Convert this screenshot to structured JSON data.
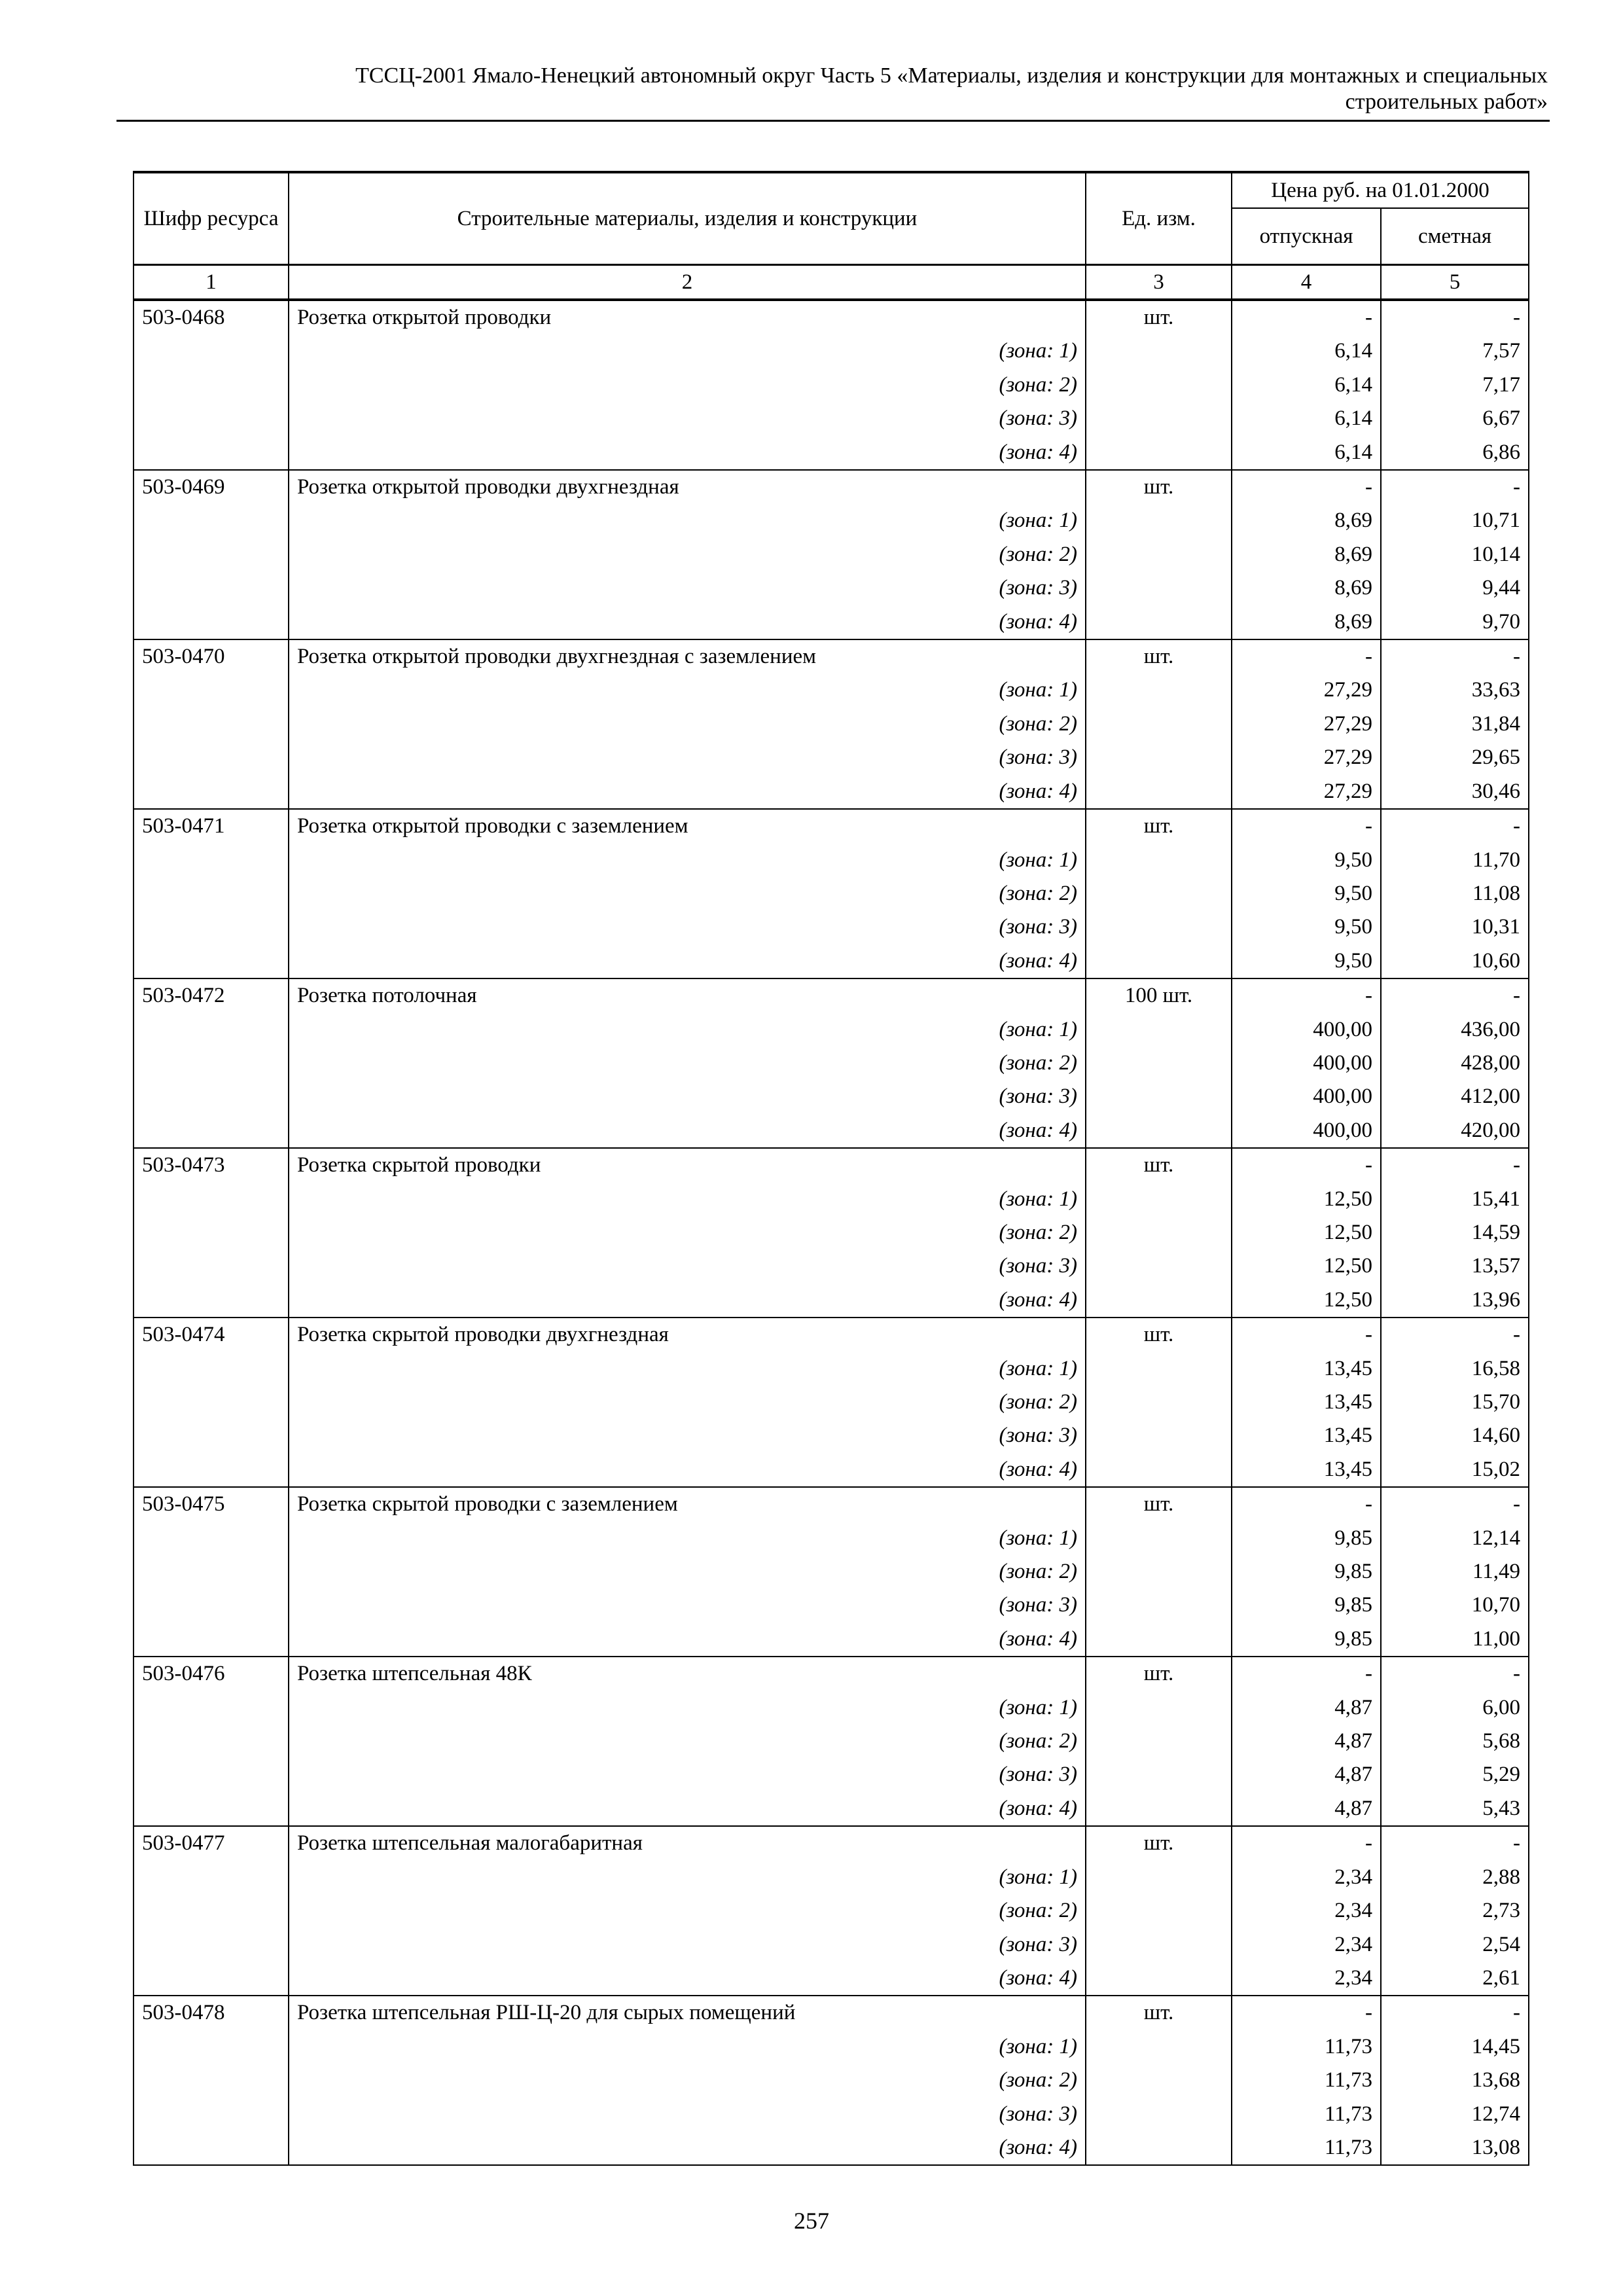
{
  "header": {
    "line1": "ТССЦ-2001 Ямало-Ненецкий автономный округ Часть 5 «Материалы, изделия и конструкции для монтажных и специальных",
    "line2": "строительных работ»"
  },
  "table": {
    "columns": {
      "code": "Шифр ресурса",
      "name": "Строительные материалы, изделия и конструкции",
      "unit": "Ед. изм.",
      "price_group": "Цена руб. на 01.01.2000",
      "release": "отпускная",
      "estimate": "сметная"
    },
    "column_numbers": [
      "1",
      "2",
      "3",
      "4",
      "5"
    ],
    "zone_labels": [
      "(зона: 1)",
      "(зона: 2)",
      "(зона: 3)",
      "(зона: 4)"
    ],
    "items": [
      {
        "code": "503-0468",
        "name": "Розетка открытой проводки",
        "unit": "шт.",
        "release": [
          "-",
          "6,14",
          "6,14",
          "6,14",
          "6,14"
        ],
        "estimate": [
          "-",
          "7,57",
          "7,17",
          "6,67",
          "6,86"
        ]
      },
      {
        "code": "503-0469",
        "name": "Розетка открытой проводки двухгнездная",
        "unit": "шт.",
        "release": [
          "-",
          "8,69",
          "8,69",
          "8,69",
          "8,69"
        ],
        "estimate": [
          "-",
          "10,71",
          "10,14",
          "9,44",
          "9,70"
        ]
      },
      {
        "code": "503-0470",
        "name": "Розетка открытой проводки двухгнездная с заземлением",
        "unit": "шт.",
        "release": [
          "-",
          "27,29",
          "27,29",
          "27,29",
          "27,29"
        ],
        "estimate": [
          "-",
          "33,63",
          "31,84",
          "29,65",
          "30,46"
        ]
      },
      {
        "code": "503-0471",
        "name": "Розетка открытой проводки с заземлением",
        "unit": "шт.",
        "release": [
          "-",
          "9,50",
          "9,50",
          "9,50",
          "9,50"
        ],
        "estimate": [
          "-",
          "11,70",
          "11,08",
          "10,31",
          "10,60"
        ]
      },
      {
        "code": "503-0472",
        "name": "Розетка потолочная",
        "unit": "100 шт.",
        "release": [
          "-",
          "400,00",
          "400,00",
          "400,00",
          "400,00"
        ],
        "estimate": [
          "-",
          "436,00",
          "428,00",
          "412,00",
          "420,00"
        ]
      },
      {
        "code": "503-0473",
        "name": "Розетка скрытой проводки",
        "unit": "шт.",
        "release": [
          "-",
          "12,50",
          "12,50",
          "12,50",
          "12,50"
        ],
        "estimate": [
          "-",
          "15,41",
          "14,59",
          "13,57",
          "13,96"
        ]
      },
      {
        "code": "503-0474",
        "name": "Розетка скрытой проводки двухгнездная",
        "unit": "шт.",
        "release": [
          "-",
          "13,45",
          "13,45",
          "13,45",
          "13,45"
        ],
        "estimate": [
          "-",
          "16,58",
          "15,70",
          "14,60",
          "15,02"
        ]
      },
      {
        "code": "503-0475",
        "name": "Розетка скрытой проводки с заземлением",
        "unit": "шт.",
        "release": [
          "-",
          "9,85",
          "9,85",
          "9,85",
          "9,85"
        ],
        "estimate": [
          "-",
          "12,14",
          "11,49",
          "10,70",
          "11,00"
        ]
      },
      {
        "code": "503-0476",
        "name": "Розетка штепсельная 48К",
        "unit": "шт.",
        "release": [
          "-",
          "4,87",
          "4,87",
          "4,87",
          "4,87"
        ],
        "estimate": [
          "-",
          "6,00",
          "5,68",
          "5,29",
          "5,43"
        ]
      },
      {
        "code": "503-0477",
        "name": "Розетка штепсельная малогабаритная",
        "unit": "шт.",
        "release": [
          "-",
          "2,34",
          "2,34",
          "2,34",
          "2,34"
        ],
        "estimate": [
          "-",
          "2,88",
          "2,73",
          "2,54",
          "2,61"
        ]
      },
      {
        "code": "503-0478",
        "name": "Розетка штепсельная РШ-Ц-20 для сырых помещений",
        "unit": "шт.",
        "release": [
          "-",
          "11,73",
          "11,73",
          "11,73",
          "11,73"
        ],
        "estimate": [
          "-",
          "14,45",
          "13,68",
          "12,74",
          "13,08"
        ]
      }
    ]
  },
  "page_number": "257"
}
